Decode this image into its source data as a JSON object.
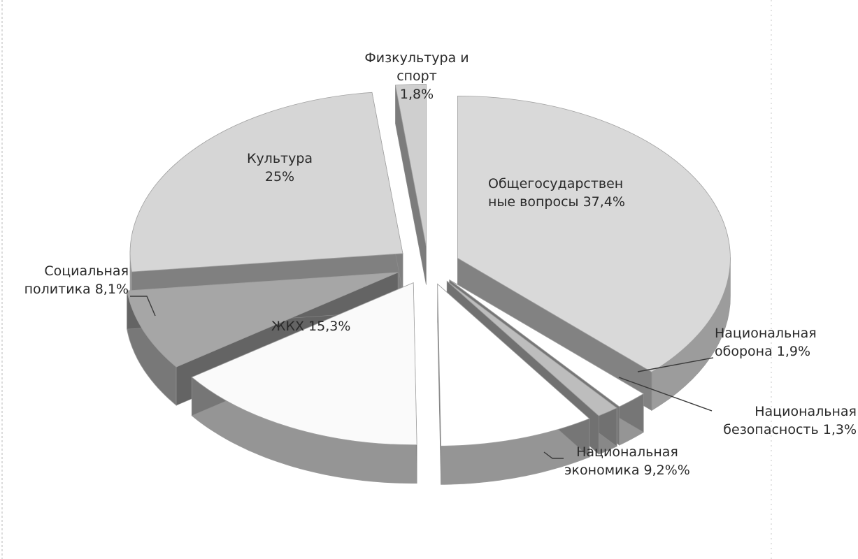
{
  "chart_data": {
    "type": "pie",
    "style": "3d-exploded",
    "legend": "none",
    "slices": [
      {
        "name": "Общегосударственные вопросы",
        "value": 37.4,
        "label_lines": [
          "Общегосударствен",
          "ные вопросы 37,4%"
        ],
        "color": "#d9d9d9"
      },
      {
        "name": "Национальная оборона",
        "value": 1.9,
        "label_lines": [
          "Национальная",
          "оборона 1,9%"
        ],
        "color": "#ffffff"
      },
      {
        "name": "Национальная безопасность",
        "value": 1.3,
        "label_lines": [
          "Национальная",
          "безопасность 1,3%"
        ],
        "color": "#bdbdbd"
      },
      {
        "name": "Национальная экономика",
        "value": 9.2,
        "label_lines": [
          "Национальная",
          "экономика 9,2%%"
        ],
        "color": "#ffffff"
      },
      {
        "name": "ЖКХ",
        "value": 15.3,
        "label_lines": [
          "ЖКХ 15,3%"
        ],
        "color": "#fafafa"
      },
      {
        "name": "Социальная политика",
        "value": 8.1,
        "label_lines": [
          "Социальная",
          "политика 8,1%"
        ],
        "color": "#a6a6a6"
      },
      {
        "name": "Культура",
        "value": 25,
        "label_lines": [
          "Культура",
          "25%"
        ],
        "color": "#d6d6d6"
      },
      {
        "name": "Физкультура и спорт",
        "value": 1.8,
        "label_lines": [
          "Физкультура и",
          "спорт",
          "1,8%"
        ],
        "color": "#cfcfcf"
      }
    ]
  }
}
